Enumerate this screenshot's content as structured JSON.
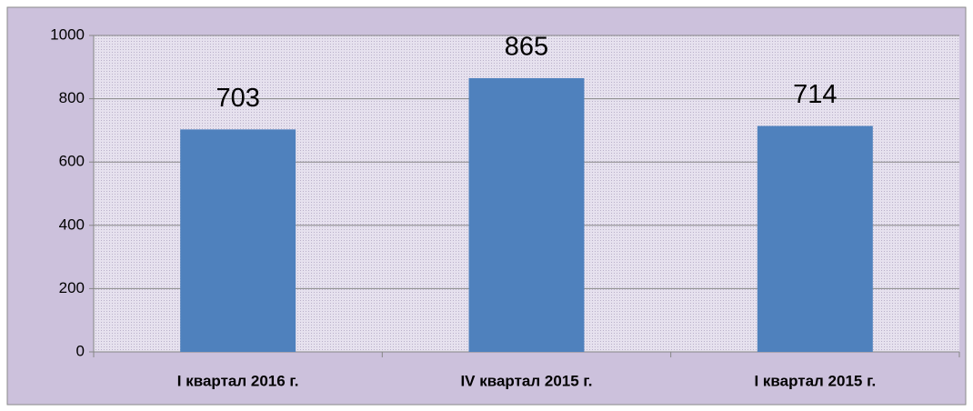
{
  "chart_data": {
    "type": "bar",
    "categories": [
      "I квартал 2016 г.",
      "IV квартал 2015 г.",
      "I квартал 2015 г."
    ],
    "values": [
      703,
      865,
      714
    ],
    "color": "#4f81bd",
    "ylim": [
      0,
      1000
    ],
    "yticks": [
      0,
      200,
      400,
      600,
      800,
      1000
    ],
    "grid": true
  }
}
